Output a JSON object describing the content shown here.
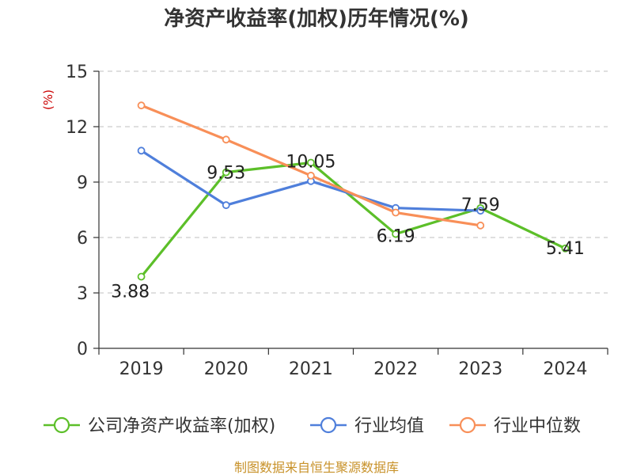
{
  "chart_data": {
    "type": "line",
    "title": "净资产收益率(加权)历年情况(%)",
    "ylabel": "(%)",
    "xlabel": "",
    "categories": [
      "2019",
      "2020",
      "2021",
      "2022",
      "2023",
      "2024"
    ],
    "ylim": [
      0,
      15
    ],
    "yticks": [
      0,
      3,
      6,
      9,
      12,
      15
    ],
    "grid": true,
    "legend_position": "bottom",
    "series": [
      {
        "name": "公司净资产收益率(加权)",
        "color": "#5cbf29",
        "values": [
          3.88,
          9.53,
          10.05,
          6.19,
          7.59,
          5.41
        ],
        "labels": [
          "3.88",
          "9.53",
          "10.05",
          "6.19",
          "7.59",
          "5.41"
        ]
      },
      {
        "name": "行业均值",
        "color": "#4f7fdb",
        "values": [
          10.7,
          7.75,
          9.05,
          7.6,
          7.45,
          null
        ]
      },
      {
        "name": "行业中位数",
        "color": "#f88f58",
        "values": [
          13.15,
          11.3,
          9.35,
          7.35,
          6.65,
          null
        ]
      }
    ]
  },
  "footer": {
    "source": "制图数据来自恒生聚源数据库"
  }
}
